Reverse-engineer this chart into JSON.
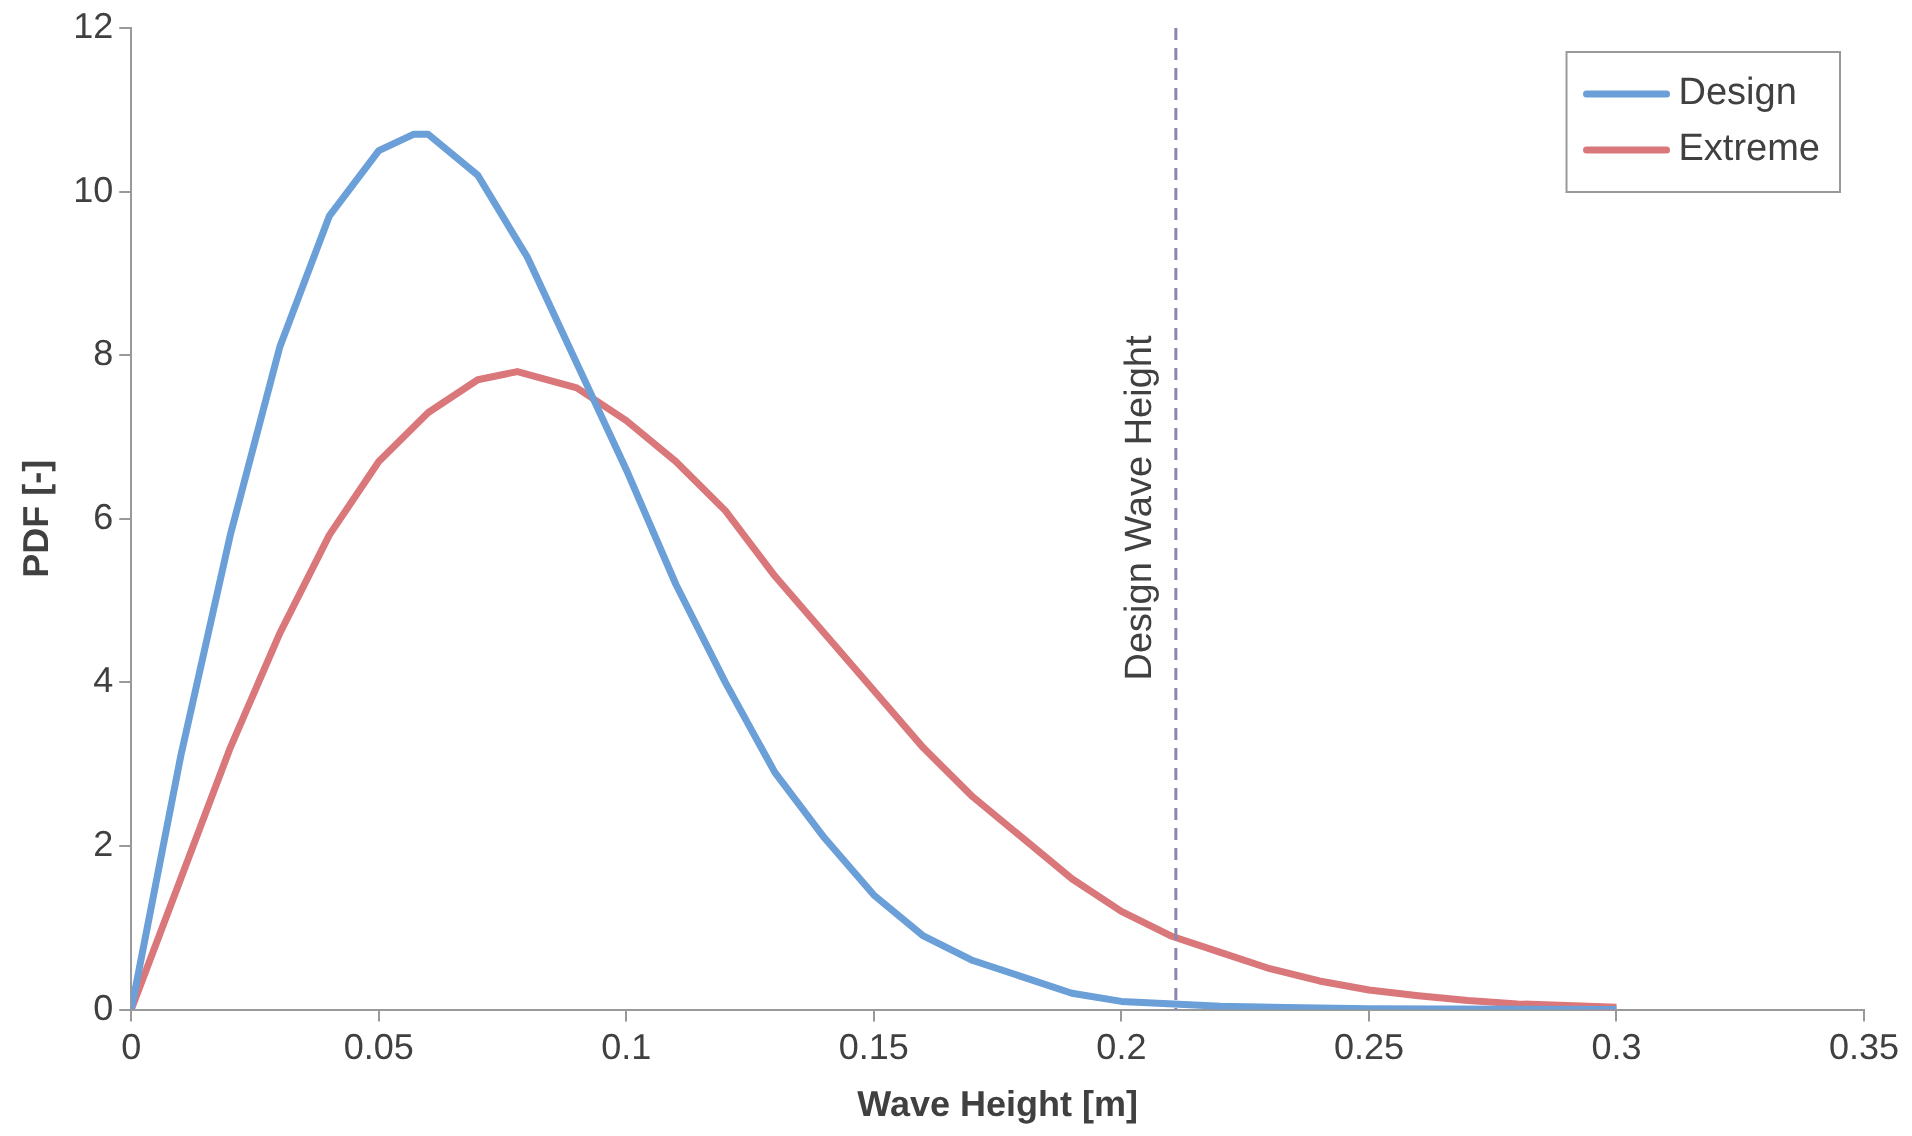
{
  "chart_data": {
    "type": "line",
    "xlabel": "Wave Height [m]",
    "ylabel": "PDF [-]",
    "xlim": [
      0,
      0.35
    ],
    "xticks": [
      0,
      0.05,
      0.1,
      0.15,
      0.2,
      0.25,
      0.3,
      0.35
    ],
    "ylim": [
      0,
      12
    ],
    "yticks": [
      0,
      2,
      4,
      6,
      8,
      10,
      12
    ],
    "grid": false,
    "legend": "top right",
    "marker": "none",
    "line_style": "solid",
    "series": [
      {
        "name": "Design",
        "color": "#6a9fd8",
        "x": [
          0,
          0.01,
          0.02,
          0.03,
          0.04,
          0.05,
          0.057,
          0.06,
          0.07,
          0.08,
          0.09,
          0.1,
          0.11,
          0.12,
          0.13,
          0.14,
          0.15,
          0.16,
          0.17,
          0.18,
          0.19,
          0.2,
          0.22,
          0.25,
          0.3
        ],
        "values": [
          0,
          3.1,
          5.8,
          8.1,
          9.7,
          10.5,
          10.7,
          10.7,
          10.2,
          9.2,
          7.9,
          6.6,
          5.2,
          4.0,
          2.9,
          2.1,
          1.4,
          0.9,
          0.6,
          0.4,
          0.2,
          0.1,
          0.04,
          0.01,
          0
        ]
      },
      {
        "name": "Extreme",
        "color": "#d9777a",
        "x": [
          0,
          0.01,
          0.02,
          0.03,
          0.04,
          0.05,
          0.06,
          0.07,
          0.078,
          0.09,
          0.1,
          0.11,
          0.12,
          0.13,
          0.14,
          0.15,
          0.16,
          0.17,
          0.18,
          0.19,
          0.2,
          0.21,
          0.22,
          0.23,
          0.24,
          0.25,
          0.26,
          0.27,
          0.28,
          0.3
        ],
        "values": [
          0,
          1.6,
          3.2,
          4.6,
          5.8,
          6.7,
          7.3,
          7.7,
          7.8,
          7.6,
          7.2,
          6.7,
          6.1,
          5.3,
          4.6,
          3.9,
          3.2,
          2.6,
          2.1,
          1.6,
          1.2,
          0.9,
          0.7,
          0.5,
          0.35,
          0.24,
          0.17,
          0.11,
          0.07,
          0.03
        ]
      }
    ],
    "ref_lines": [
      {
        "axis": "x",
        "value": 0.211,
        "label": "Design Wave Height",
        "color": "#8a86b0",
        "line_style": "dashed"
      }
    ]
  }
}
